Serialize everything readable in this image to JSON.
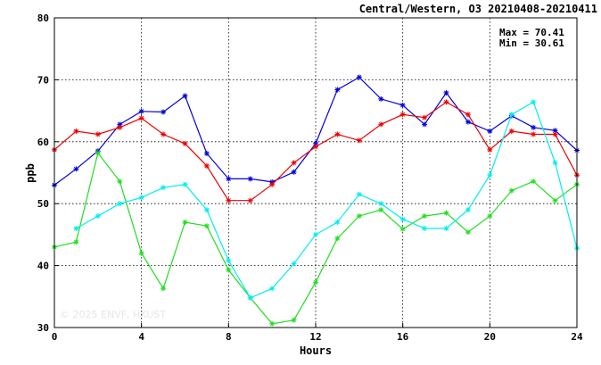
{
  "chart_data": {
    "type": "line",
    "title": "Central/Western, O3 20210408-20210411",
    "xlabel": "Hours",
    "ylabel": "ppb",
    "xlim": [
      0,
      24
    ],
    "ylim": [
      30,
      80
    ],
    "x_ticks": [
      0,
      4,
      8,
      12,
      16,
      20,
      24
    ],
    "y_ticks": [
      30,
      40,
      50,
      60,
      70,
      80
    ],
    "grid": true,
    "stats": {
      "max_label": "Max = 70.41",
      "min_label": "Min = 30.61"
    },
    "watermark": "© 2025 ENVF, HKUST",
    "x": [
      0,
      1,
      2,
      3,
      4,
      5,
      6,
      7,
      8,
      9,
      10,
      11,
      12,
      13,
      14,
      15,
      16,
      17,
      18,
      19,
      20,
      21,
      22,
      23,
      24
    ],
    "series": [
      {
        "color": "#0000dd",
        "values": [
          53.0,
          55.6,
          58.5,
          62.8,
          64.9,
          64.8,
          67.4,
          58.1,
          54.0,
          54.0,
          53.5,
          55.1,
          59.7,
          68.4,
          70.41,
          66.9,
          65.9,
          62.8,
          67.9,
          63.2,
          61.7,
          64.2,
          62.3,
          61.8,
          58.6
        ]
      },
      {
        "color": "#ee0000",
        "values": [
          58.7,
          61.7,
          61.2,
          62.3,
          63.8,
          61.2,
          59.7,
          56.1,
          50.5,
          50.5,
          53.1,
          56.6,
          59.2,
          61.2,
          60.2,
          62.8,
          64.4,
          63.9,
          66.4,
          64.4,
          58.7,
          61.7,
          61.2,
          61.2,
          54.6
        ]
      },
      {
        "color": "#22dd22",
        "values": [
          43.0,
          43.8,
          58.2,
          53.6,
          42.0,
          36.3,
          47.0,
          46.4,
          39.3,
          34.8,
          30.61,
          31.2,
          37.3,
          44.4,
          48.0,
          49.0,
          45.9,
          48.0,
          48.5,
          45.4,
          48.0,
          52.1,
          53.6,
          50.5,
          53.1
        ]
      },
      {
        "color": "#00eeee",
        "values": [
          null,
          46.0,
          48.0,
          50.0,
          51.0,
          52.6,
          53.1,
          49.0,
          40.8,
          34.8,
          36.3,
          40.3,
          45.0,
          47.0,
          51.5,
          50.0,
          47.5,
          46.0,
          46.0,
          49.0,
          54.6,
          64.4,
          66.4,
          56.6,
          42.8
        ]
      }
    ]
  }
}
